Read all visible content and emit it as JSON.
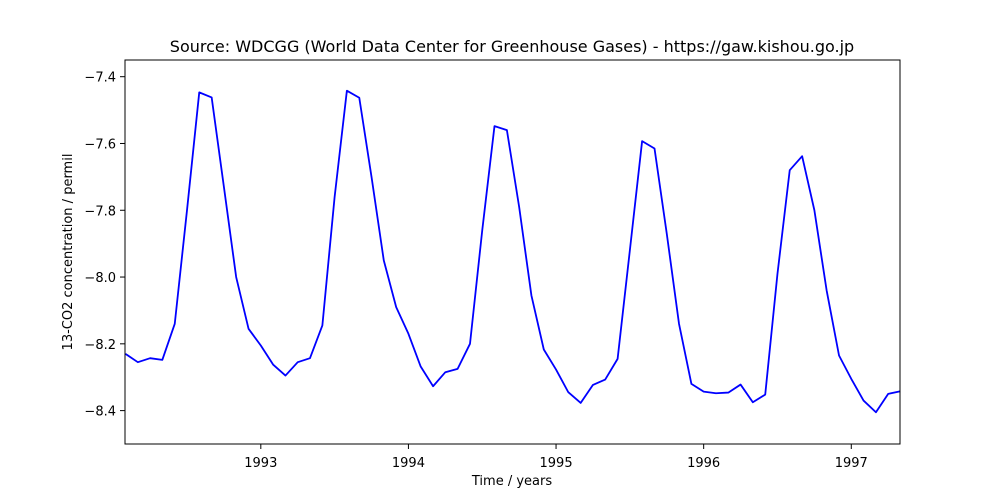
{
  "chart_data": {
    "type": "line",
    "title": "Source: WDCGG (World Data Center for Greenhouse Gases) - https://gaw.kishou.go.jp",
    "xlabel": "Time / years",
    "ylabel": "13-CO2 concentration / permil",
    "xlim": [
      1992.08,
      1997.33
    ],
    "ylim": [
      -8.5,
      -7.35
    ],
    "x_ticks": [
      1993,
      1994,
      1995,
      1996,
      1997
    ],
    "x_tick_labels": [
      "1993",
      "1994",
      "1995",
      "1996",
      "1997"
    ],
    "y_ticks": [
      -7.4,
      -7.6,
      -7.8,
      -8.0,
      -8.2,
      -8.4
    ],
    "y_tick_labels": [
      "−7.4",
      "−7.6",
      "−7.8",
      "−8.0",
      "−8.2",
      "−8.4"
    ],
    "grid": false,
    "series": [
      {
        "color": "#0000ff",
        "x": [
          1992.083,
          1992.167,
          1992.25,
          1992.333,
          1992.417,
          1992.5,
          1992.583,
          1992.667,
          1992.75,
          1992.833,
          1992.917,
          1993.0,
          1993.083,
          1993.167,
          1993.25,
          1993.333,
          1993.417,
          1993.5,
          1993.583,
          1993.667,
          1993.75,
          1993.833,
          1993.917,
          1994.0,
          1994.083,
          1994.167,
          1994.25,
          1994.333,
          1994.417,
          1994.5,
          1994.583,
          1994.667,
          1994.75,
          1994.833,
          1994.917,
          1995.0,
          1995.083,
          1995.167,
          1995.25,
          1995.333,
          1995.417,
          1995.5,
          1995.583,
          1995.667,
          1995.75,
          1995.833,
          1995.917,
          1996.0,
          1996.083,
          1996.167,
          1996.25,
          1996.333,
          1996.417,
          1996.5,
          1996.583,
          1996.667,
          1996.75,
          1996.833,
          1996.917,
          1997.0,
          1997.083,
          1997.167,
          1997.25,
          1997.333
        ],
        "y": [
          -8.23,
          -8.255,
          -8.243,
          -8.248,
          -8.14,
          -7.8,
          -7.447,
          -7.462,
          -7.73,
          -8.0,
          -8.155,
          -8.205,
          -8.262,
          -8.295,
          -8.255,
          -8.243,
          -8.145,
          -7.76,
          -7.442,
          -7.463,
          -7.7,
          -7.95,
          -8.09,
          -8.17,
          -8.268,
          -8.327,
          -8.285,
          -8.275,
          -8.2,
          -7.86,
          -7.548,
          -7.56,
          -7.79,
          -8.055,
          -8.217,
          -8.277,
          -8.345,
          -8.377,
          -8.323,
          -8.307,
          -8.245,
          -7.92,
          -7.593,
          -7.615,
          -7.87,
          -8.14,
          -8.32,
          -8.343,
          -8.348,
          -8.346,
          -8.322,
          -8.375,
          -8.352,
          -7.99,
          -7.68,
          -7.638,
          -7.8,
          -8.04,
          -8.235,
          -8.305,
          -8.37,
          -8.405,
          -8.35,
          -8.342
        ]
      }
    ]
  }
}
